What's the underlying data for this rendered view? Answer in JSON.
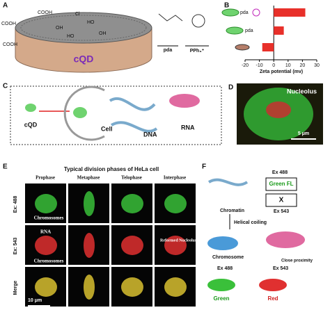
{
  "panel_a": {
    "label": "A",
    "groups": [
      "COOH",
      "COOH",
      "Cl",
      "OH",
      "HO",
      "OH",
      "HO",
      "COOH"
    ],
    "dot": "cQD",
    "pda": "pda",
    "pph": "PPh₃⁺"
  },
  "panel_b": {
    "label": "B",
    "rows": [
      "pda",
      "pda"
    ],
    "values": [
      22,
      7,
      -8
    ],
    "xlim": [
      -20,
      30
    ],
    "xticks": [
      -20,
      -10,
      0,
      10,
      20,
      30
    ],
    "xlabel": "Zeta potential (mv)",
    "color": "#e8302a"
  },
  "panel_c": {
    "label": "C",
    "cqd": "cQD",
    "cell": "Cell",
    "dna": "DNA",
    "rna": "RNA"
  },
  "panel_d": {
    "label": "D",
    "nucleolus": "Nucleolus",
    "scale": "5 μm"
  },
  "panel_e": {
    "label": "E",
    "title": "Typical division phases of HeLa cell",
    "columns": [
      "Prophase",
      "Metaphase",
      "Telophase",
      "Interphase"
    ],
    "rows": [
      "Ex: 488",
      "Ex: 543",
      "Merge"
    ],
    "chromosomes": "Chromosomes",
    "rna": "RNA",
    "chromosomes2": "Chromosomes",
    "reformed": "Reformed Nucleolus",
    "scale": "10 μm"
  },
  "panel_f": {
    "label": "F",
    "ex488": "Ex 488",
    "green_fl": "Green FL",
    "x": "X",
    "ex543": "Ex 543",
    "chromatin": "Chromatin",
    "coiling": "Helical coiling",
    "chromosome": "Chromosome",
    "proximity": "Close proximity",
    "ex488b": "Ex 488",
    "ex543b": "Ex 543",
    "green": "Green",
    "red": "Red"
  }
}
